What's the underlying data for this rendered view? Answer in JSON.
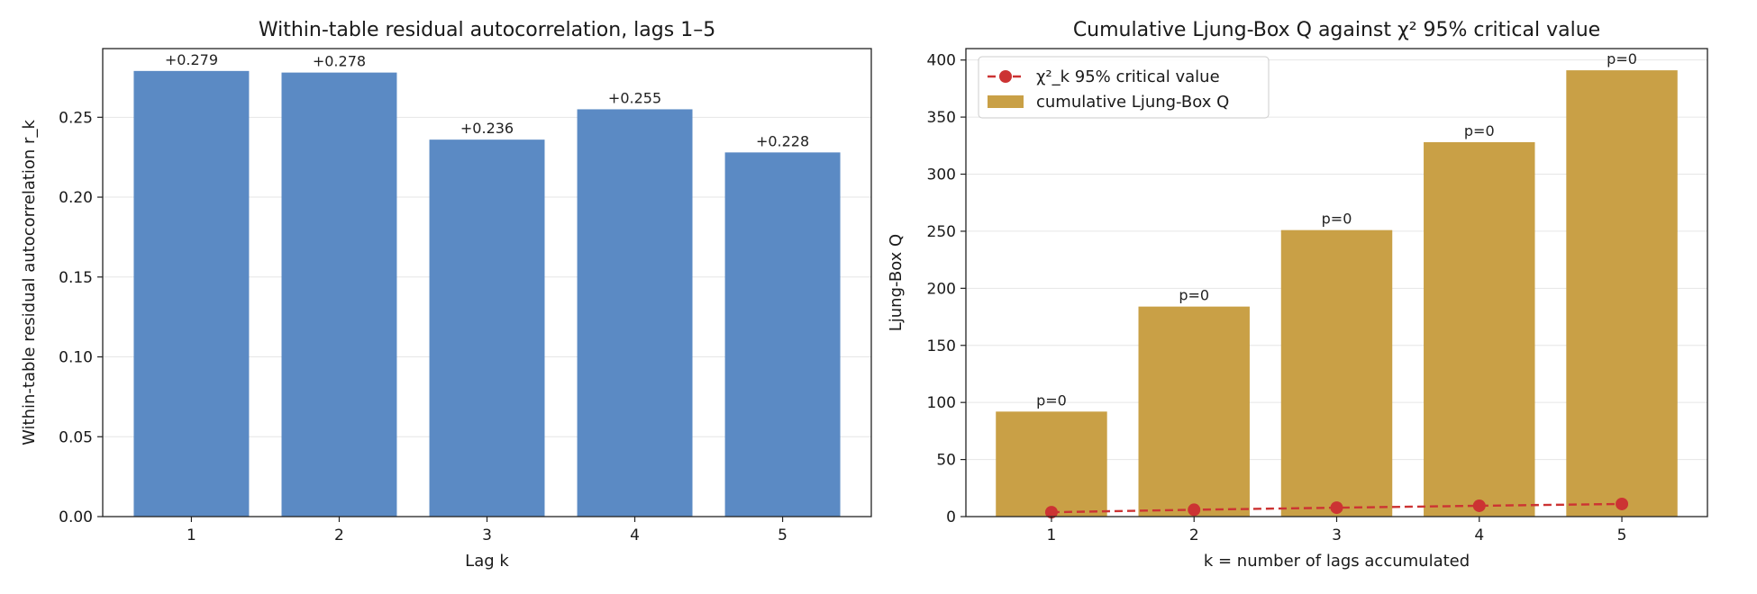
{
  "chart_data": [
    {
      "type": "bar",
      "title": "Within-table residual autocorrelation, lags 1–5",
      "xlabel": "Lag k",
      "ylabel": "Within-table residual autocorrelation r_k",
      "categories": [
        "1",
        "2",
        "3",
        "4",
        "5"
      ],
      "values": [
        0.279,
        0.278,
        0.236,
        0.255,
        0.228
      ],
      "data_labels": [
        "+0.279",
        "+0.278",
        "+0.236",
        "+0.255",
        "+0.228"
      ],
      "ylim": [
        0,
        0.293
      ],
      "yticks": [
        0.0,
        0.05,
        0.1,
        0.15,
        0.2,
        0.25
      ],
      "ytick_labels": [
        "0.00",
        "0.05",
        "0.10",
        "0.15",
        "0.20",
        "0.25"
      ],
      "grid": "y",
      "colors": {
        "bar": "#5b8ac4"
      }
    },
    {
      "type": "bar",
      "title": "Cumulative Ljung-Box Q against χ² 95% critical value",
      "xlabel": "k = number of lags accumulated",
      "ylabel": "Ljung-Box Q",
      "categories": [
        "1",
        "2",
        "3",
        "4",
        "5"
      ],
      "series": [
        {
          "name": "cumulative Ljung-Box Q",
          "kind": "bar",
          "values": [
            92,
            184,
            251,
            328,
            391
          ]
        },
        {
          "name": "χ²_k 95% critical value",
          "kind": "line",
          "style": "dashed",
          "marker": "circle",
          "values": [
            3.84,
            5.99,
            7.81,
            9.49,
            11.07
          ]
        }
      ],
      "data_labels": [
        "p=0",
        "p=0",
        "p=0",
        "p=0",
        "p=0"
      ],
      "ylim": [
        0,
        410
      ],
      "yticks": [
        0,
        50,
        100,
        150,
        200,
        250,
        300,
        350,
        400
      ],
      "ytick_labels": [
        "0",
        "50",
        "100",
        "150",
        "200",
        "250",
        "300",
        "350",
        "400"
      ],
      "grid": "y",
      "legend": "top-left",
      "colors": {
        "bar": "#c9a046",
        "line": "#cc3333"
      }
    }
  ]
}
